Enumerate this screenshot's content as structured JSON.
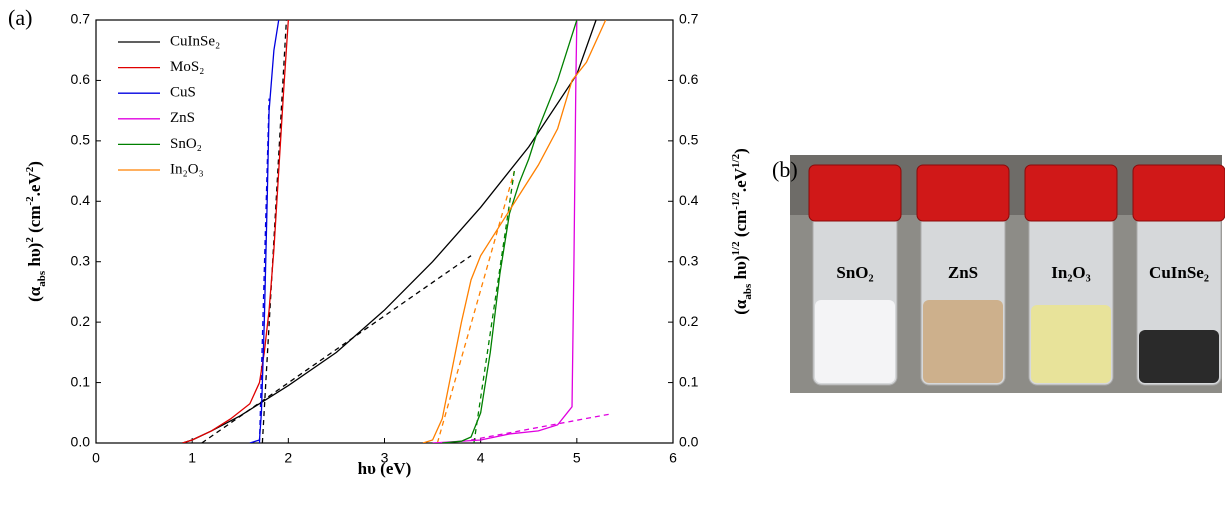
{
  "panel_a_label": "(a)",
  "panel_b": {
    "label": "(b)",
    "jars": [
      "SnO₂",
      "ZnS",
      "In₂O₃",
      "CuInSe₂"
    ]
  },
  "chart_data": {
    "type": "line",
    "xlabel": [
      {
        "text": "hυ (eV)"
      }
    ],
    "ylabel": [
      {
        "text": "(α"
      },
      {
        "text": "abs",
        "pos": "sub"
      },
      {
        "text": " hυ)"
      },
      {
        "text": "2",
        "pos": "sup"
      },
      {
        "text": " (cm"
      },
      {
        "text": "-2",
        "pos": "sup"
      },
      {
        "text": ".eV"
      },
      {
        "text": "2",
        "pos": "sup"
      },
      {
        "text": ")"
      }
    ],
    "y2label": [
      {
        "text": "(α"
      },
      {
        "text": "abs",
        "pos": "sub"
      },
      {
        "text": " hυ)"
      },
      {
        "text": "1/2",
        "pos": "sup"
      },
      {
        "text": " (cm"
      },
      {
        "text": "-1/2",
        "pos": "sup"
      },
      {
        "text": ".eV"
      },
      {
        "text": "1/2",
        "pos": "sup"
      },
      {
        "text": ")"
      }
    ],
    "xlim": [
      0,
      6
    ],
    "xticks": [
      0,
      1,
      2,
      3,
      4,
      5,
      6
    ],
    "ylim": [
      0,
      0.7
    ],
    "yticks": [
      {
        "value": 0,
        "label": "0.0"
      },
      0.1,
      0.2,
      0.3,
      0.4,
      0.5,
      0.6,
      0.7
    ],
    "y2lim": [
      0,
      0.7
    ],
    "y2ticks": [
      {
        "value": 0,
        "label": "0.0"
      },
      0.1,
      0.2,
      0.3,
      0.4,
      0.5,
      0.6,
      0.7
    ],
    "legend": "top-left",
    "series": [
      {
        "name": "CuInSe₂",
        "color": "#000000",
        "x": [
          0.9,
          1.0,
          1.2,
          1.5,
          1.75,
          2.0,
          2.5,
          3.0,
          3.5,
          4.0,
          4.5,
          5.0,
          5.2
        ],
        "values": [
          0,
          0.005,
          0.02,
          0.045,
          0.07,
          0.095,
          0.15,
          0.22,
          0.3,
          0.39,
          0.49,
          0.61,
          0.7
        ]
      },
      {
        "name": "MoS₂",
        "color": "#e00000",
        "x": [
          0.9,
          1.0,
          1.2,
          1.4,
          1.6,
          1.7,
          1.75,
          1.8,
          1.85,
          1.9,
          1.95,
          2.0
        ],
        "values": [
          0,
          0.005,
          0.02,
          0.04,
          0.065,
          0.1,
          0.15,
          0.22,
          0.32,
          0.45,
          0.58,
          0.7
        ]
      },
      {
        "name": "CuS",
        "color": "#0000e0",
        "x": [
          1.6,
          1.7,
          1.72,
          1.75,
          1.78,
          1.8,
          1.85,
          1.9
        ],
        "values": [
          0,
          0.005,
          0.05,
          0.2,
          0.4,
          0.55,
          0.65,
          0.7
        ]
      },
      {
        "name": "ZnS",
        "color": "#e000e0",
        "x": [
          3.5,
          4.0,
          4.3,
          4.6,
          4.8,
          4.9,
          4.95,
          4.97,
          4.99,
          5.0
        ],
        "values": [
          0,
          0.005,
          0.015,
          0.02,
          0.03,
          0.05,
          0.06,
          0.3,
          0.6,
          0.7
        ]
      },
      {
        "name": "SnO₂",
        "color": "#008000",
        "x": [
          3.6,
          3.8,
          3.9,
          4.0,
          4.1,
          4.2,
          4.3,
          4.4,
          4.5,
          4.6,
          4.8,
          4.9,
          5.0
        ],
        "values": [
          0,
          0.003,
          0.01,
          0.05,
          0.15,
          0.28,
          0.38,
          0.43,
          0.47,
          0.52,
          0.6,
          0.65,
          0.7
        ]
      },
      {
        "name": "In₂O₃",
        "color": "#ff8000",
        "x": [
          3.4,
          3.5,
          3.6,
          3.7,
          3.8,
          3.9,
          4.0,
          4.2,
          4.4,
          4.6,
          4.8,
          4.95,
          5.1,
          5.3
        ],
        "values": [
          0,
          0.005,
          0.04,
          0.12,
          0.2,
          0.27,
          0.31,
          0.36,
          0.41,
          0.46,
          0.52,
          0.6,
          0.63,
          0.7
        ]
      }
    ],
    "fits": [
      {
        "color": "#000000",
        "x": [
          1.1,
          3.9
        ],
        "values": [
          0,
          0.31
        ]
      },
      {
        "color": "#000000",
        "x": [
          1.73,
          1.98
        ],
        "values": [
          0,
          0.7
        ]
      },
      {
        "color": "#0000e0",
        "x": [
          1.7,
          1.8
        ],
        "values": [
          0,
          0.57
        ]
      },
      {
        "color": "#e000e0",
        "x": [
          3.9,
          5.35
        ],
        "values": [
          0.005,
          0.048
        ]
      },
      {
        "color": "#ff8000",
        "x": [
          3.55,
          4.35
        ],
        "values": [
          0,
          0.45
        ]
      },
      {
        "color": "#008000",
        "x": [
          3.93,
          4.35
        ],
        "values": [
          0,
          0.45
        ]
      }
    ]
  }
}
